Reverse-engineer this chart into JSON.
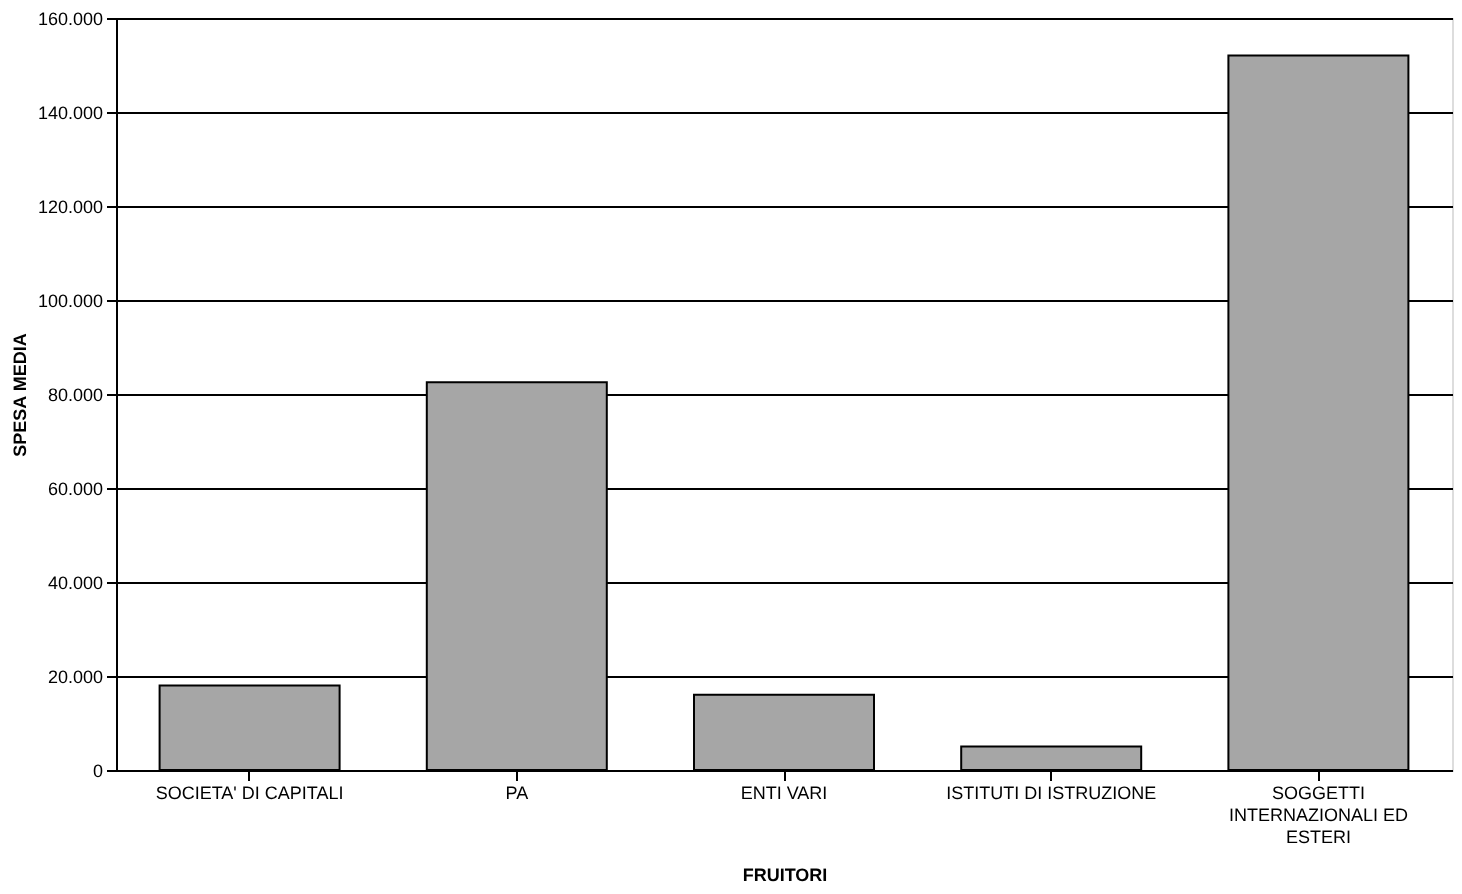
{
  "chart_data": {
    "type": "bar",
    "xlabel": "FRUITORI",
    "ylabel": "SPESA MEDIA",
    "categories": [
      "SOCIETA' DI CAPITALI",
      "PA",
      "ENTI VARI",
      "ISTITUTI DI ISTRUZIONE",
      "SOGGETTI INTERNAZIONALI ED ESTERI"
    ],
    "values": [
      18000,
      82500,
      16000,
      5000,
      152000
    ],
    "color": "#a6a6a6",
    "ylim": [
      0,
      160000
    ],
    "yticks": [
      {
        "value": 0,
        "label": "0"
      },
      {
        "value": 20000,
        "label": "20.000"
      },
      {
        "value": 40000,
        "label": "40.000"
      },
      {
        "value": 60000,
        "label": "60.000"
      },
      {
        "value": 80000,
        "label": "80.000"
      },
      {
        "value": 100000,
        "label": "100.000"
      },
      {
        "value": 120000,
        "label": "120.000"
      },
      {
        "value": 140000,
        "label": "140.000"
      },
      {
        "value": 160000,
        "label": "160.000"
      }
    ],
    "grid": "y"
  }
}
